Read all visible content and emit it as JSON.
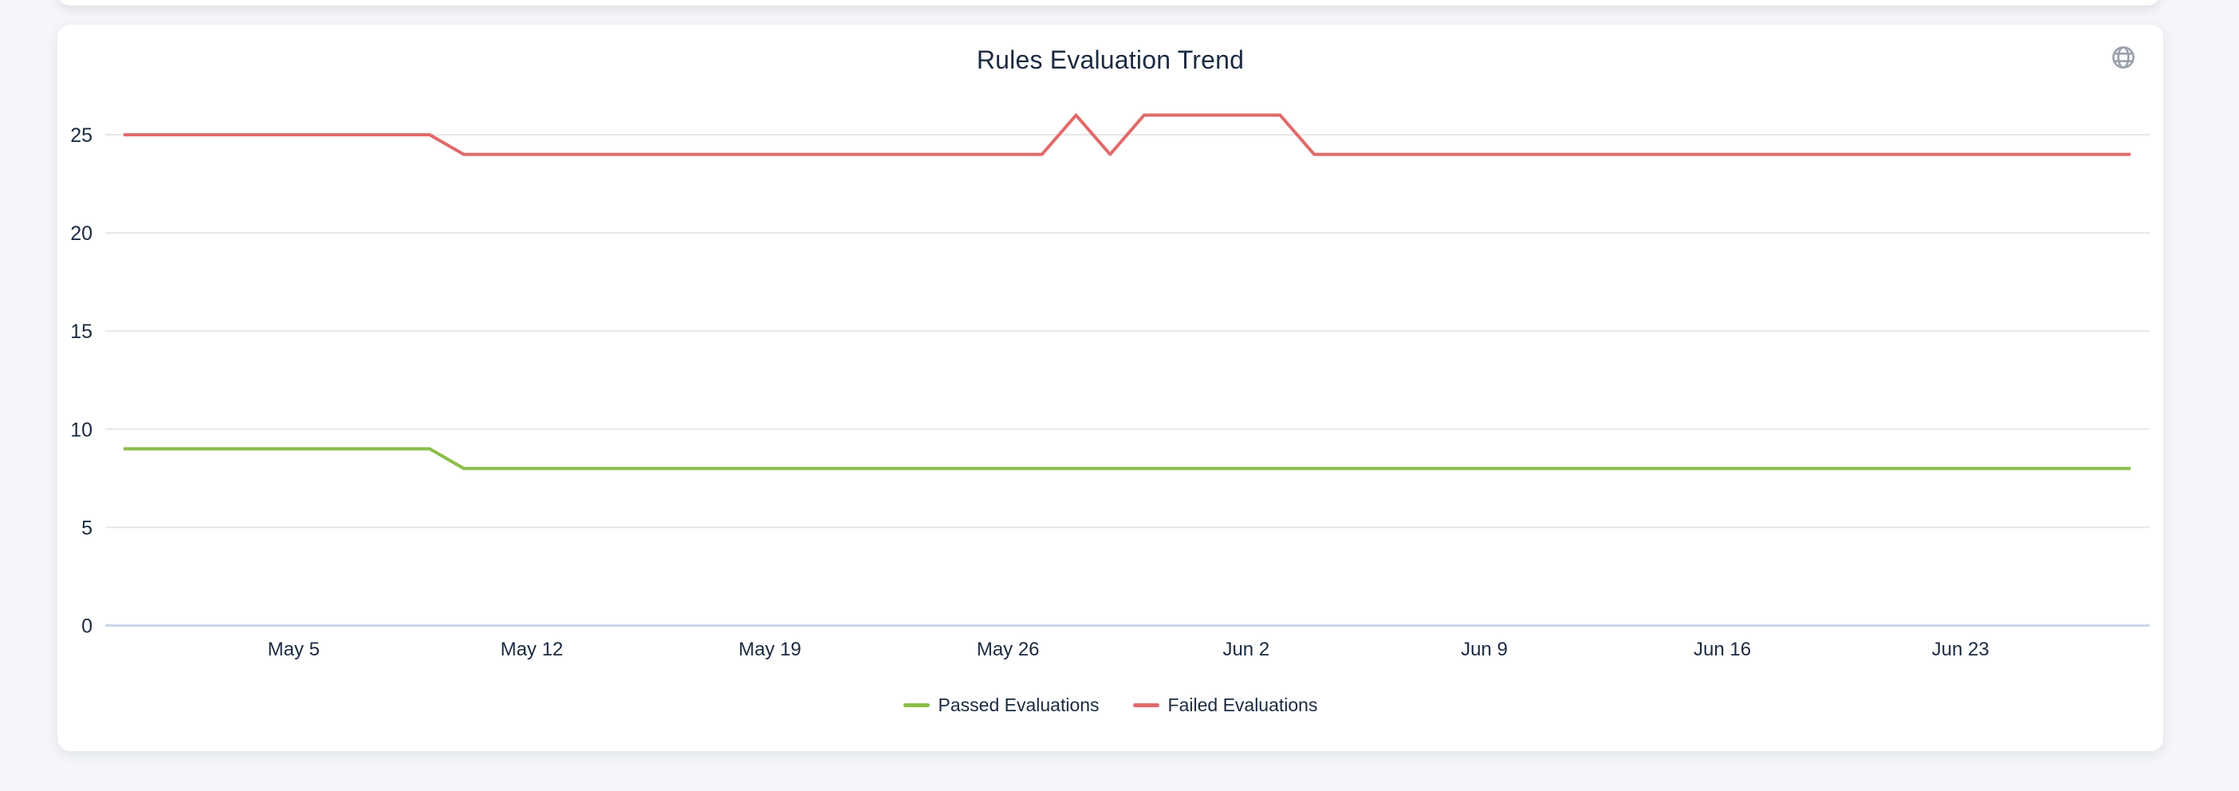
{
  "window": {
    "background": "#F5F6F9"
  },
  "card": {
    "background": "#FFFFFF",
    "title": "Rules Evaluation Trend",
    "corner_icon": "globe-icon",
    "corner_icon_color": "#9AA1AB"
  },
  "chart_data": {
    "type": "line",
    "title": "Rules Evaluation Trend",
    "xlabel": "",
    "ylabel": "",
    "grid": true,
    "gridline_color": "#E7E7E7",
    "axis_line_color": "#CBD5E8",
    "label_color": "#1B2A41",
    "legend_position": "bottom-center",
    "y_ticks": [
      0,
      5,
      10,
      15,
      20,
      25
    ],
    "ylim": [
      0,
      26.5
    ],
    "x_tick_labels": [
      "May 5",
      "May 12",
      "May 19",
      "May 26",
      "Jun 2",
      "Jun 9",
      "Jun 16",
      "Jun 23"
    ],
    "x": [
      "Apr 30",
      "May 1",
      "May 2",
      "May 3",
      "May 4",
      "May 5",
      "May 6",
      "May 7",
      "May 8",
      "May 9",
      "May 10",
      "May 11",
      "May 12",
      "May 13",
      "May 14",
      "May 15",
      "May 16",
      "May 17",
      "May 18",
      "May 19",
      "May 20",
      "May 21",
      "May 22",
      "May 23",
      "May 24",
      "May 25",
      "May 26",
      "May 27",
      "May 28",
      "May 29",
      "May 30",
      "May 31",
      "Jun 1",
      "Jun 2",
      "Jun 3",
      "Jun 4",
      "Jun 5",
      "Jun 6",
      "Jun 7",
      "Jun 8",
      "Jun 9",
      "Jun 10",
      "Jun 11",
      "Jun 12",
      "Jun 13",
      "Jun 14",
      "Jun 15",
      "Jun 16",
      "Jun 17",
      "Jun 18",
      "Jun 19",
      "Jun 20",
      "Jun 21",
      "Jun 22",
      "Jun 23",
      "Jun 24",
      "Jun 25",
      "Jun 26",
      "Jun 27",
      "Jun 28"
    ],
    "series": [
      {
        "name": "Passed Evaluations",
        "color": "#8BBD4B",
        "values": [
          9,
          9,
          9,
          9,
          9,
          9,
          9,
          9,
          9,
          9,
          8,
          8,
          8,
          8,
          8,
          8,
          8,
          8,
          8,
          8,
          8,
          8,
          8,
          8,
          8,
          8,
          8,
          8,
          8,
          8,
          8,
          8,
          8,
          8,
          8,
          8,
          8,
          8,
          8,
          8,
          8,
          8,
          8,
          8,
          8,
          8,
          8,
          8,
          8,
          8,
          8,
          8,
          8,
          8,
          8,
          8,
          8,
          8,
          8,
          8
        ]
      },
      {
        "name": "Failed Evaluations",
        "color": "#E16A6A",
        "values": [
          25,
          25,
          25,
          25,
          25,
          25,
          25,
          25,
          25,
          25,
          24,
          24,
          24,
          24,
          24,
          24,
          24,
          24,
          24,
          24,
          24,
          24,
          24,
          24,
          24,
          24,
          24,
          24,
          26,
          24,
          26,
          26,
          26,
          26,
          26,
          24,
          24,
          24,
          24,
          24,
          24,
          24,
          24,
          24,
          24,
          24,
          24,
          24,
          24,
          24,
          24,
          24,
          24,
          24,
          24,
          24,
          24,
          24,
          24,
          24
        ]
      }
    ]
  }
}
